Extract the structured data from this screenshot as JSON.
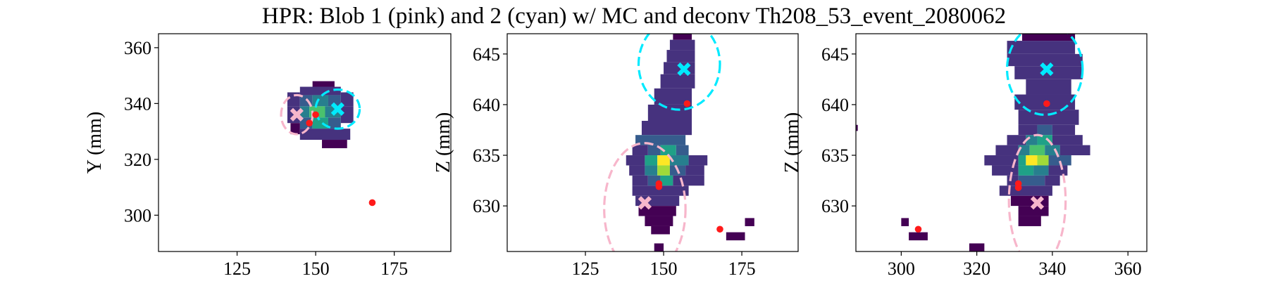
{
  "figure": {
    "title": "HPR: Blob 1 (pink) and 2 (cyan) w/ MC and deconv Th208_53_event_2080062"
  },
  "colors": {
    "blob1": "#f7b6cb",
    "blob2": "#00eaff",
    "mc": "#ff1a1a",
    "viridis": [
      "#440154",
      "#46327e",
      "#365c8d",
      "#277f8e",
      "#1fa187",
      "#4ac16d",
      "#a0da39",
      "#fde725"
    ]
  },
  "chart_data": [
    {
      "type": "heatmap",
      "title": "",
      "xlabel": "",
      "ylabel": "Y (mm)",
      "xlim": [
        100,
        193
      ],
      "ylim": [
        287,
        365
      ],
      "xticks": [
        "125",
        "150",
        "175"
      ],
      "yticks": [
        "300",
        "320",
        "340",
        "360"
      ],
      "blob1_marker": {
        "x": 144,
        "y": 336
      },
      "blob2_marker": {
        "x": 157,
        "y": 338
      },
      "blob1_ellipse": {
        "cx": 144,
        "cy": 336,
        "rx": 5,
        "ry": 7
      },
      "blob2_ellipse": {
        "cx": 157,
        "cy": 338,
        "rx": 7,
        "ry": 7
      },
      "mc_points": [
        {
          "x": 148,
          "y": 333
        },
        {
          "x": 150,
          "y": 336
        },
        {
          "x": 168,
          "y": 304.5
        }
      ],
      "cells": [
        {
          "x": 149,
          "y": 346,
          "w": 7,
          "h": 2,
          "v": 0.05
        },
        {
          "x": 145,
          "y": 343,
          "w": 13,
          "h": 3,
          "v": 0.1
        },
        {
          "x": 141,
          "y": 339,
          "w": 4,
          "h": 5,
          "v": 0.08
        },
        {
          "x": 145,
          "y": 339,
          "w": 4,
          "h": 4,
          "v": 0.25
        },
        {
          "x": 149,
          "y": 339,
          "w": 5,
          "h": 4,
          "v": 0.45
        },
        {
          "x": 154,
          "y": 339,
          "w": 4,
          "h": 4,
          "v": 0.25
        },
        {
          "x": 158,
          "y": 339,
          "w": 4,
          "h": 5,
          "v": 0.08
        },
        {
          "x": 141,
          "y": 333,
          "w": 4,
          "h": 6,
          "v": 0.12
        },
        {
          "x": 145,
          "y": 335,
          "w": 3,
          "h": 4,
          "v": 0.45
        },
        {
          "x": 148,
          "y": 335,
          "w": 5,
          "h": 4,
          "v": 0.75
        },
        {
          "x": 153,
          "y": 335,
          "w": 5,
          "h": 4,
          "v": 0.45
        },
        {
          "x": 158,
          "y": 333,
          "w": 4,
          "h": 6,
          "v": 0.1
        },
        {
          "x": 145,
          "y": 331,
          "w": 4,
          "h": 4,
          "v": 0.3
        },
        {
          "x": 149,
          "y": 331,
          "w": 5,
          "h": 4,
          "v": 0.6
        },
        {
          "x": 154,
          "y": 331,
          "w": 4,
          "h": 4,
          "v": 0.3
        },
        {
          "x": 142,
          "y": 329,
          "w": 3,
          "h": 4,
          "v": 0.05
        },
        {
          "x": 145,
          "y": 327,
          "w": 16,
          "h": 4,
          "v": 0.1
        },
        {
          "x": 152,
          "y": 324,
          "w": 8,
          "h": 3,
          "v": 0.05
        }
      ]
    },
    {
      "type": "heatmap",
      "title": "",
      "xlabel": "",
      "ylabel": "Z (mm)",
      "xlim": [
        100,
        193
      ],
      "ylim": [
        625.5,
        647
      ],
      "xticks": [
        "125",
        "150",
        "175"
      ],
      "yticks": [
        "630",
        "635",
        "640",
        "645"
      ],
      "blob1_marker": {
        "x": 144,
        "y": 630.3
      },
      "blob2_marker": {
        "x": 156.5,
        "y": 643.5
      },
      "blob1_ellipse": {
        "cx": 144,
        "cy": 629.7,
        "rx": 13,
        "ry": 6.5
      },
      "blob2_ellipse": {
        "cx": 155,
        "cy": 644,
        "rx": 13,
        "ry": 4.5
      },
      "mc_points": [
        {
          "x": 157.5,
          "y": 640.1
        },
        {
          "x": 148.5,
          "y": 632.2
        },
        {
          "x": 148.5,
          "y": 631.9
        },
        {
          "x": 168,
          "y": 627.7
        }
      ],
      "cells": [
        {
          "x": 153,
          "y": 646.4,
          "w": 6,
          "h": 0.6,
          "v": 0.05
        },
        {
          "x": 152,
          "y": 645.4,
          "w": 8,
          "h": 1.0,
          "v": 0.1
        },
        {
          "x": 151,
          "y": 644.2,
          "w": 9,
          "h": 1.2,
          "v": 0.08
        },
        {
          "x": 150,
          "y": 643.0,
          "w": 10,
          "h": 1.2,
          "v": 0.12
        },
        {
          "x": 149,
          "y": 641.6,
          "w": 11,
          "h": 1.4,
          "v": 0.1
        },
        {
          "x": 147,
          "y": 640.0,
          "w": 12,
          "h": 1.6,
          "v": 0.15
        },
        {
          "x": 145,
          "y": 638.4,
          "w": 14,
          "h": 1.6,
          "v": 0.12
        },
        {
          "x": 143,
          "y": 637.0,
          "w": 16,
          "h": 1.4,
          "v": 0.18
        },
        {
          "x": 141,
          "y": 636.0,
          "w": 16,
          "h": 1.0,
          "v": 0.22
        },
        {
          "x": 140,
          "y": 635.0,
          "w": 5,
          "h": 1.0,
          "v": 0.12
        },
        {
          "x": 145,
          "y": 635.0,
          "w": 4,
          "h": 1.0,
          "v": 0.35
        },
        {
          "x": 149,
          "y": 635.0,
          "w": 5,
          "h": 1.0,
          "v": 0.6
        },
        {
          "x": 154,
          "y": 635.0,
          "w": 4,
          "h": 1.0,
          "v": 0.3
        },
        {
          "x": 138,
          "y": 634.0,
          "w": 6,
          "h": 1.0,
          "v": 0.15
        },
        {
          "x": 144,
          "y": 634.0,
          "w": 4,
          "h": 1.0,
          "v": 0.55
        },
        {
          "x": 148,
          "y": 634.0,
          "w": 4,
          "h": 1.0,
          "v": 0.95
        },
        {
          "x": 152,
          "y": 634.0,
          "w": 6,
          "h": 1.0,
          "v": 0.45
        },
        {
          "x": 158,
          "y": 634.0,
          "w": 6,
          "h": 1.0,
          "v": 0.1
        },
        {
          "x": 139,
          "y": 633.0,
          "w": 5,
          "h": 1.0,
          "v": 0.15
        },
        {
          "x": 144,
          "y": 633.0,
          "w": 4,
          "h": 1.0,
          "v": 0.45
        },
        {
          "x": 148,
          "y": 633.0,
          "w": 4,
          "h": 1.0,
          "v": 0.8
        },
        {
          "x": 152,
          "y": 633.0,
          "w": 5,
          "h": 1.0,
          "v": 0.35
        },
        {
          "x": 157,
          "y": 633.0,
          "w": 6,
          "h": 1.0,
          "v": 0.1
        },
        {
          "x": 140,
          "y": 632.0,
          "w": 5,
          "h": 1.0,
          "v": 0.12
        },
        {
          "x": 145,
          "y": 632.0,
          "w": 4,
          "h": 1.0,
          "v": 0.3
        },
        {
          "x": 149,
          "y": 632.0,
          "w": 4,
          "h": 1.0,
          "v": 0.5
        },
        {
          "x": 153,
          "y": 632.0,
          "w": 10,
          "h": 1.0,
          "v": 0.12
        },
        {
          "x": 140,
          "y": 631.0,
          "w": 18,
          "h": 1.0,
          "v": 0.1
        },
        {
          "x": 141,
          "y": 630.0,
          "w": 14,
          "h": 1.0,
          "v": 0.08
        },
        {
          "x": 142,
          "y": 629.0,
          "w": 12,
          "h": 1.0,
          "v": 0.06
        },
        {
          "x": 144,
          "y": 628.0,
          "w": 9,
          "h": 1.0,
          "v": 0.05
        },
        {
          "x": 146,
          "y": 627.2,
          "w": 6,
          "h": 0.8,
          "v": 0.04
        },
        {
          "x": 147,
          "y": 625.5,
          "w": 3,
          "h": 0.8,
          "v": 0.04
        },
        {
          "x": 176,
          "y": 628.0,
          "w": 3,
          "h": 0.8,
          "v": 0.04
        },
        {
          "x": 170,
          "y": 626.6,
          "w": 6,
          "h": 0.8,
          "v": 0.04
        }
      ]
    },
    {
      "type": "heatmap",
      "title": "",
      "xlabel": "",
      "ylabel": "Z (mm)",
      "xlim": [
        288,
        365
      ],
      "ylim": [
        625.5,
        647
      ],
      "xticks": [
        "300",
        "320",
        "340",
        "360"
      ],
      "yticks": [
        "630",
        "635",
        "640",
        "645"
      ],
      "blob1_marker": {
        "x": 336,
        "y": 630.3
      },
      "blob2_marker": {
        "x": 338.5,
        "y": 643.5
      },
      "blob1_ellipse": {
        "cx": 336,
        "cy": 630.5,
        "rx": 7.5,
        "ry": 6.5
      },
      "blob2_ellipse": {
        "cx": 338,
        "cy": 643.5,
        "rx": 10,
        "ry": 4.5
      },
      "mc_points": [
        {
          "x": 338.5,
          "y": 640.1
        },
        {
          "x": 331,
          "y": 632.2
        },
        {
          "x": 331,
          "y": 631.8
        },
        {
          "x": 304.5,
          "y": 627.7
        }
      ],
      "cells": [
        {
          "x": 332,
          "y": 646.3,
          "w": 14,
          "h": 0.7,
          "v": 0.05
        },
        {
          "x": 328,
          "y": 645.0,
          "w": 18,
          "h": 1.3,
          "v": 0.08
        },
        {
          "x": 328,
          "y": 643.8,
          "w": 20,
          "h": 1.2,
          "v": 0.1
        },
        {
          "x": 330,
          "y": 642.5,
          "w": 18,
          "h": 1.3,
          "v": 0.12
        },
        {
          "x": 333,
          "y": 641.0,
          "w": 12,
          "h": 1.5,
          "v": 0.1
        },
        {
          "x": 330,
          "y": 639.5,
          "w": 16,
          "h": 1.5,
          "v": 0.12
        },
        {
          "x": 331,
          "y": 638.0,
          "w": 16,
          "h": 1.5,
          "v": 0.15
        },
        {
          "x": 331,
          "y": 637.0,
          "w": 5,
          "h": 1.0,
          "v": 0.2
        },
        {
          "x": 336,
          "y": 637.0,
          "w": 4,
          "h": 1.0,
          "v": 0.35
        },
        {
          "x": 340,
          "y": 637.0,
          "w": 6,
          "h": 1.0,
          "v": 0.2
        },
        {
          "x": 328,
          "y": 636.0,
          "w": 5,
          "h": 1.0,
          "v": 0.15
        },
        {
          "x": 333,
          "y": 636.0,
          "w": 3,
          "h": 1.0,
          "v": 0.4
        },
        {
          "x": 336,
          "y": 636.0,
          "w": 4,
          "h": 1.0,
          "v": 0.6
        },
        {
          "x": 340,
          "y": 636.0,
          "w": 8,
          "h": 1.0,
          "v": 0.15
        },
        {
          "x": 325,
          "y": 635.0,
          "w": 6,
          "h": 1.0,
          "v": 0.12
        },
        {
          "x": 331,
          "y": 635.0,
          "w": 3,
          "h": 1.0,
          "v": 0.45
        },
        {
          "x": 334,
          "y": 635.0,
          "w": 4,
          "h": 1.0,
          "v": 0.75
        },
        {
          "x": 338,
          "y": 635.0,
          "w": 4,
          "h": 1.0,
          "v": 0.45
        },
        {
          "x": 342,
          "y": 635.0,
          "w": 8,
          "h": 1.0,
          "v": 0.12
        },
        {
          "x": 322,
          "y": 634.0,
          "w": 9,
          "h": 1.0,
          "v": 0.15
        },
        {
          "x": 331,
          "y": 634.0,
          "w": 2,
          "h": 1.0,
          "v": 0.55
        },
        {
          "x": 333,
          "y": 634.0,
          "w": 3,
          "h": 1.0,
          "v": 0.95
        },
        {
          "x": 336,
          "y": 634.0,
          "w": 3,
          "h": 1.0,
          "v": 0.8
        },
        {
          "x": 339,
          "y": 634.0,
          "w": 6,
          "h": 1.0,
          "v": 0.3
        },
        {
          "x": 324,
          "y": 633.0,
          "w": 7,
          "h": 1.0,
          "v": 0.15
        },
        {
          "x": 331,
          "y": 633.0,
          "w": 4,
          "h": 1.0,
          "v": 0.6
        },
        {
          "x": 335,
          "y": 633.0,
          "w": 4,
          "h": 1.0,
          "v": 0.4
        },
        {
          "x": 339,
          "y": 633.0,
          "w": 5,
          "h": 1.0,
          "v": 0.15
        },
        {
          "x": 328,
          "y": 632.0,
          "w": 3,
          "h": 1.0,
          "v": 0.1
        },
        {
          "x": 331,
          "y": 632.0,
          "w": 7,
          "h": 1.0,
          "v": 0.3
        },
        {
          "x": 338,
          "y": 632.0,
          "w": 4,
          "h": 1.0,
          "v": 0.12
        },
        {
          "x": 326,
          "y": 631.0,
          "w": 14,
          "h": 1.0,
          "v": 0.1
        },
        {
          "x": 329,
          "y": 630.0,
          "w": 10,
          "h": 1.0,
          "v": 0.07
        },
        {
          "x": 331,
          "y": 629.0,
          "w": 8,
          "h": 1.0,
          "v": 0.05
        },
        {
          "x": 331,
          "y": 628.0,
          "w": 6,
          "h": 1.0,
          "v": 0.05
        },
        {
          "x": 300,
          "y": 628.0,
          "w": 2,
          "h": 0.8,
          "v": 0.04
        },
        {
          "x": 302,
          "y": 626.6,
          "w": 5,
          "h": 0.8,
          "v": 0.04
        },
        {
          "x": 318,
          "y": 625.5,
          "w": 4,
          "h": 0.8,
          "v": 0.04
        },
        {
          "x": 287.5,
          "y": 637.4,
          "w": 1,
          "h": 0.6,
          "v": 0.04
        }
      ]
    }
  ]
}
